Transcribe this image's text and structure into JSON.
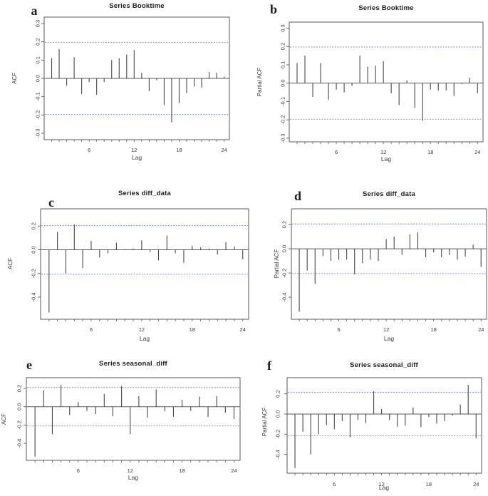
{
  "figure": {
    "background": "#ffffff",
    "bar_color": "#474747",
    "axis_color": "#5a5a5a",
    "conf_line_color": "#8080ee",
    "text_color": "#1c1c1c",
    "xlabel": "Lag",
    "grid": false,
    "legend": "none"
  },
  "chart_data": [
    {
      "id": "a",
      "panel_label": "a",
      "type": "bar",
      "title": "Series  Booktime",
      "ylabel": "ACF",
      "xlabel": "Lag",
      "lags": [
        1,
        2,
        3,
        4,
        5,
        6,
        7,
        8,
        9,
        10,
        11,
        12,
        13,
        14,
        15,
        16,
        17,
        18,
        19,
        20,
        21,
        22,
        23,
        24
      ],
      "values": [
        0.11,
        0.16,
        -0.04,
        0.115,
        -0.085,
        -0.02,
        -0.09,
        -0.02,
        0.1,
        0.11,
        0.13,
        0.155,
        0.03,
        -0.07,
        -0.01,
        -0.145,
        -0.24,
        -0.135,
        -0.08,
        -0.045,
        -0.05,
        0.035,
        0.03,
        0.01
      ],
      "conf_limit": 0.197,
      "conf_style": "blue dashed",
      "yticks": [
        0.3,
        0.2,
        0.1,
        0.0,
        -0.1,
        -0.2,
        -0.3
      ],
      "xticks_labeled": [
        6,
        12,
        18,
        24
      ],
      "ylim": [
        -0.335,
        0.335
      ],
      "xlim": [
        0,
        24.7
      ]
    },
    {
      "id": "b",
      "panel_label": "b",
      "type": "bar",
      "title": "Series  Booktime",
      "ylabel": "Partial ACF",
      "xlabel": "Lag",
      "lags": [
        1,
        2,
        3,
        4,
        5,
        6,
        7,
        8,
        9,
        10,
        11,
        12,
        13,
        14,
        15,
        16,
        17,
        18,
        19,
        20,
        21,
        22,
        23,
        24
      ],
      "values": [
        0.11,
        0.15,
        -0.075,
        0.11,
        -0.09,
        -0.035,
        -0.05,
        -0.015,
        0.15,
        0.09,
        0.095,
        0.12,
        -0.055,
        -0.12,
        0.015,
        -0.135,
        -0.205,
        -0.035,
        -0.04,
        -0.04,
        -0.07,
        -0.005,
        0.03,
        -0.055
      ],
      "conf_limit": 0.197,
      "conf_style": "blue dashed",
      "yticks": [
        0.3,
        0.2,
        0.1,
        0.0,
        -0.1,
        -0.2,
        -0.3
      ],
      "xticks_labeled": [
        6,
        12,
        18,
        24
      ],
      "ylim": [
        -0.32,
        0.333
      ],
      "xlim": [
        0,
        24.7
      ]
    },
    {
      "id": "c",
      "panel_label": "c",
      "type": "bar",
      "title": "Series  diff_data",
      "ylabel": "ACF",
      "xlabel": "Lag",
      "lags": [
        1,
        2,
        3,
        4,
        5,
        6,
        7,
        8,
        9,
        10,
        11,
        12,
        13,
        14,
        15,
        16,
        17,
        18,
        19,
        20,
        21,
        22,
        23,
        24
      ],
      "values": [
        -0.53,
        0.15,
        -0.2,
        0.215,
        -0.155,
        0.075,
        -0.065,
        -0.03,
        0.06,
        0.005,
        0.01,
        0.08,
        -0.02,
        -0.09,
        0.12,
        -0.03,
        -0.11,
        0.035,
        0.02,
        0.01,
        -0.04,
        0.065,
        0.03,
        -0.08
      ],
      "conf_limit": 0.205,
      "conf_style": "blue dashed",
      "yticks": [
        0.2,
        0.0,
        -0.2,
        -0.4
      ],
      "xticks_labeled": [
        6,
        12,
        18,
        24
      ],
      "ylim": [
        -0.587,
        0.346
      ],
      "xlim": [
        0,
        24.7
      ]
    },
    {
      "id": "d",
      "panel_label": "d",
      "type": "bar",
      "title": "Series  diff_data",
      "ylabel": "Partial ACF",
      "xlabel": "Lag",
      "lags": [
        1,
        2,
        3,
        4,
        5,
        6,
        7,
        8,
        9,
        10,
        11,
        12,
        13,
        14,
        15,
        16,
        17,
        18,
        19,
        20,
        21,
        22,
        23,
        24
      ],
      "values": [
        -0.52,
        -0.18,
        -0.29,
        -0.06,
        -0.1,
        -0.09,
        -0.09,
        -0.21,
        -0.12,
        -0.09,
        -0.1,
        0.08,
        0.1,
        -0.05,
        0.12,
        0.135,
        -0.07,
        -0.03,
        -0.07,
        -0.05,
        -0.09,
        -0.065,
        0.035,
        -0.15
      ],
      "conf_limit": 0.205,
      "conf_style": "blue dashed",
      "yticks": [
        0.2,
        0.0,
        -0.2,
        -0.4
      ],
      "xticks_labeled": [
        6,
        12,
        18,
        24
      ],
      "ylim": [
        -0.582,
        0.33
      ],
      "xlim": [
        0,
        24.7
      ]
    },
    {
      "id": "e",
      "panel_label": "e",
      "type": "bar",
      "title": "Series  seasonal_diff",
      "ylabel": "ACF",
      "xlabel": "Lag",
      "lags": [
        1,
        2,
        3,
        4,
        5,
        6,
        7,
        8,
        9,
        10,
        11,
        12,
        13,
        14,
        15,
        16,
        17,
        18,
        19,
        20,
        21,
        22,
        23,
        24
      ],
      "values": [
        -0.545,
        0.18,
        -0.3,
        0.24,
        -0.09,
        0.05,
        -0.045,
        -0.08,
        0.14,
        -0.105,
        0.225,
        -0.3,
        0.115,
        -0.12,
        0.19,
        -0.05,
        -0.11,
        0.075,
        -0.045,
        0.11,
        -0.11,
        0.115,
        -0.065,
        -0.135
      ],
      "conf_limit": 0.21,
      "conf_style": "blue dashed",
      "yticks": [
        0.2,
        0.0,
        -0.2,
        -0.4
      ],
      "xticks_labeled": [
        6,
        12,
        18,
        24
      ],
      "ylim": [
        -0.586,
        0.317
      ],
      "xlim": [
        0,
        24.7
      ]
    },
    {
      "id": "f",
      "panel_label": "f",
      "type": "bar",
      "title": "Series  seasonal_diff",
      "ylabel": "Partial ACF",
      "xlabel": "Lag",
      "lags": [
        1,
        2,
        3,
        4,
        5,
        6,
        7,
        8,
        9,
        10,
        11,
        12,
        13,
        14,
        15,
        16,
        17,
        18,
        19,
        20,
        21,
        22,
        23,
        24
      ],
      "values": [
        -0.535,
        -0.175,
        -0.4,
        -0.2,
        -0.11,
        -0.15,
        -0.07,
        -0.23,
        -0.06,
        -0.09,
        0.225,
        0.05,
        -0.06,
        -0.125,
        -0.115,
        0.065,
        -0.13,
        -0.03,
        -0.095,
        -0.07,
        -0.015,
        0.095,
        0.29,
        -0.24
      ],
      "conf_limit": 0.215,
      "conf_style": "blue dashed",
      "yticks": [
        0.2,
        0.0,
        -0.2,
        -0.4
      ],
      "xticks_labeled": [
        6,
        12,
        18,
        24
      ],
      "ylim": [
        -0.586,
        0.36
      ],
      "xlim": [
        0,
        24.7
      ]
    }
  ]
}
